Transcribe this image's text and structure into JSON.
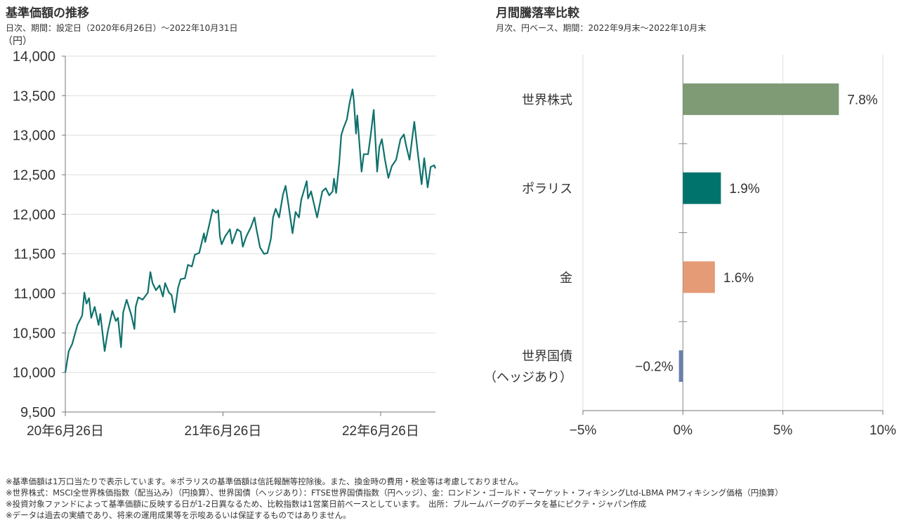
{
  "left": {
    "title": "基準価額の推移",
    "subtitle": "日次、期間：設定日（2020年6月26日）～2022年10月31日",
    "unit": "（円）"
  },
  "right": {
    "title": "月間騰落率比較",
    "subtitle": "月次、円ベース、期間：2022年9月末～2022年10月末"
  },
  "notes": [
    "※基準価額は1万口当たりで表示しています。※ポラリスの基準価額は信託報酬等控除後。また、換金時の費用・税金等は考慮しておりません。",
    "※世界株式：MSCI全世界株価指数（配当込み）（円換算）、世界国債（ヘッジあり）：FTSE世界国債指数（円ヘッジ）、金：ロンドン・ゴールド・マーケット・フィキシングLtd-LBMA PMフィキシング価格（円換算）",
    "※投資対象ファンドによって基準価額に反映する日が1-2日異なるため、比較指数は1営業日前ベースとしています。　出所：ブルームバーグのデータを基にピクテ・ジャパン作成",
    "※データは過去の実績であり、将来の運用成果等を示唆あるいは保証するものではありません。"
  ],
  "chart_data": [
    {
      "type": "line",
      "title": "基準価額の推移",
      "ylabel": "（円）",
      "ylim": [
        9500,
        14000
      ],
      "yticks": [
        9500,
        10000,
        10500,
        11000,
        11500,
        12000,
        12500,
        13000,
        13500,
        14000
      ],
      "ytick_labels": [
        "9,500",
        "10,000",
        "10,500",
        "11,000",
        "11,500",
        "12,000",
        "12,500",
        "13,000",
        "13,500",
        "14,000"
      ],
      "xlim": [
        "2020-06-26",
        "2022-10-31"
      ],
      "xticks": [
        "2020-06-26",
        "2021-06-26",
        "2022-06-26"
      ],
      "xtick_labels": [
        "20年6月26日",
        "21年6月26日",
        "22年6月26日"
      ],
      "grid": "horizontal",
      "color": "#0f716c",
      "points": [
        [
          "2020-06-26",
          10000
        ],
        [
          "2020-07-04",
          10270
        ],
        [
          "2020-07-12",
          10360
        ],
        [
          "2020-07-24",
          10600
        ],
        [
          "2020-08-04",
          10720
        ],
        [
          "2020-08-09",
          11010
        ],
        [
          "2020-08-14",
          10870
        ],
        [
          "2020-08-20",
          10940
        ],
        [
          "2020-08-25",
          10690
        ],
        [
          "2020-09-02",
          10830
        ],
        [
          "2020-09-11",
          10600
        ],
        [
          "2020-09-15",
          10740
        ],
        [
          "2020-09-25",
          10270
        ],
        [
          "2020-10-02",
          10510
        ],
        [
          "2020-10-13",
          10780
        ],
        [
          "2020-10-21",
          10650
        ],
        [
          "2020-10-26",
          10690
        ],
        [
          "2020-11-02",
          10320
        ],
        [
          "2020-11-07",
          10760
        ],
        [
          "2020-11-15",
          10920
        ],
        [
          "2020-11-26",
          10720
        ],
        [
          "2020-12-03",
          10550
        ],
        [
          "2020-12-06",
          10830
        ],
        [
          "2020-12-12",
          10950
        ],
        [
          "2020-12-22",
          10920
        ],
        [
          "2021-01-03",
          11010
        ],
        [
          "2021-01-09",
          11270
        ],
        [
          "2021-01-14",
          11130
        ],
        [
          "2021-01-22",
          11040
        ],
        [
          "2021-01-30",
          11100
        ],
        [
          "2021-02-07",
          10960
        ],
        [
          "2021-02-12",
          11130
        ],
        [
          "2021-02-21",
          11010
        ],
        [
          "2021-02-27",
          10980
        ],
        [
          "2021-03-06",
          10760
        ],
        [
          "2021-03-14",
          11070
        ],
        [
          "2021-03-20",
          11180
        ],
        [
          "2021-03-30",
          11190
        ],
        [
          "2021-04-06",
          11360
        ],
        [
          "2021-04-15",
          11340
        ],
        [
          "2021-04-22",
          11490
        ],
        [
          "2021-05-02",
          11510
        ],
        [
          "2021-05-13",
          11760
        ],
        [
          "2021-05-16",
          11650
        ],
        [
          "2021-05-24",
          11840
        ],
        [
          "2021-06-02",
          12060
        ],
        [
          "2021-06-10",
          12020
        ],
        [
          "2021-06-15",
          12050
        ],
        [
          "2021-06-19",
          11720
        ],
        [
          "2021-06-23",
          11620
        ],
        [
          "2021-07-01",
          11720
        ],
        [
          "2021-07-12",
          11810
        ],
        [
          "2021-07-17",
          11630
        ],
        [
          "2021-07-29",
          11810
        ],
        [
          "2021-08-06",
          11780
        ],
        [
          "2021-08-11",
          11590
        ],
        [
          "2021-08-19",
          11720
        ],
        [
          "2021-08-30",
          11840
        ],
        [
          "2021-09-07",
          11960
        ],
        [
          "2021-09-12",
          11800
        ],
        [
          "2021-09-20",
          11580
        ],
        [
          "2021-09-29",
          11500
        ],
        [
          "2021-10-07",
          11510
        ],
        [
          "2021-10-15",
          11690
        ],
        [
          "2021-10-20",
          11960
        ],
        [
          "2021-10-26",
          12070
        ],
        [
          "2021-11-03",
          11960
        ],
        [
          "2021-11-12",
          12250
        ],
        [
          "2021-11-18",
          12360
        ],
        [
          "2021-11-25",
          12110
        ],
        [
          "2021-12-04",
          11760
        ],
        [
          "2021-12-11",
          12030
        ],
        [
          "2021-12-19",
          11960
        ],
        [
          "2021-12-24",
          12180
        ],
        [
          "2022-01-06",
          12420
        ],
        [
          "2022-01-09",
          12200
        ],
        [
          "2022-01-16",
          12290
        ],
        [
          "2022-01-30",
          11960
        ],
        [
          "2022-02-11",
          12290
        ],
        [
          "2022-02-19",
          12330
        ],
        [
          "2022-02-27",
          12240
        ],
        [
          "2022-03-07",
          12290
        ],
        [
          "2022-03-10",
          12450
        ],
        [
          "2022-03-15",
          12270
        ],
        [
          "2022-03-22",
          12640
        ],
        [
          "2022-03-27",
          13000
        ],
        [
          "2022-04-01",
          13090
        ],
        [
          "2022-04-09",
          13200
        ],
        [
          "2022-04-15",
          13400
        ],
        [
          "2022-04-22",
          13580
        ],
        [
          "2022-04-25",
          13440
        ],
        [
          "2022-04-30",
          13020
        ],
        [
          "2022-05-03",
          13250
        ],
        [
          "2022-05-13",
          12540
        ],
        [
          "2022-05-18",
          12760
        ],
        [
          "2022-05-28",
          12760
        ],
        [
          "2022-06-03",
          13000
        ],
        [
          "2022-06-10",
          13320
        ],
        [
          "2022-06-18",
          12540
        ],
        [
          "2022-06-23",
          12850
        ],
        [
          "2022-06-29",
          12950
        ],
        [
          "2022-07-06",
          12690
        ],
        [
          "2022-07-14",
          12460
        ],
        [
          "2022-07-22",
          12610
        ],
        [
          "2022-08-01",
          12690
        ],
        [
          "2022-08-11",
          12950
        ],
        [
          "2022-08-19",
          13010
        ],
        [
          "2022-08-24",
          12870
        ],
        [
          "2022-09-01",
          12690
        ],
        [
          "2022-09-09",
          13040
        ],
        [
          "2022-09-12",
          13170
        ],
        [
          "2022-09-20",
          12780
        ],
        [
          "2022-09-29",
          12380
        ],
        [
          "2022-10-05",
          12710
        ],
        [
          "2022-10-13",
          12340
        ],
        [
          "2022-10-20",
          12600
        ],
        [
          "2022-10-28",
          12620
        ],
        [
          "2022-10-31",
          12580
        ]
      ]
    },
    {
      "type": "bar",
      "orientation": "horizontal",
      "title": "月間騰落率比較",
      "categories": [
        "世界株式",
        "ポラリス",
        "金",
        "世界国債\n（ヘッジあり）"
      ],
      "category_lines": [
        [
          "世界株式"
        ],
        [
          "ポラリス"
        ],
        [
          "金"
        ],
        [
          "世界国債",
          "（ヘッジあり）"
        ]
      ],
      "values": [
        7.8,
        1.9,
        1.6,
        -0.2
      ],
      "value_labels": [
        "7.8%",
        "1.9%",
        "1.6%",
        "-0.2%"
      ],
      "colors": [
        "#7f9b76",
        "#00736d",
        "#e59b76",
        "#6a7fae"
      ],
      "xlim": [
        -5,
        10
      ],
      "xticks": [
        -5,
        0,
        5,
        10
      ],
      "xtick_labels": [
        "-5%",
        "0%",
        "5%",
        "10%"
      ],
      "grid": "vertical"
    }
  ]
}
